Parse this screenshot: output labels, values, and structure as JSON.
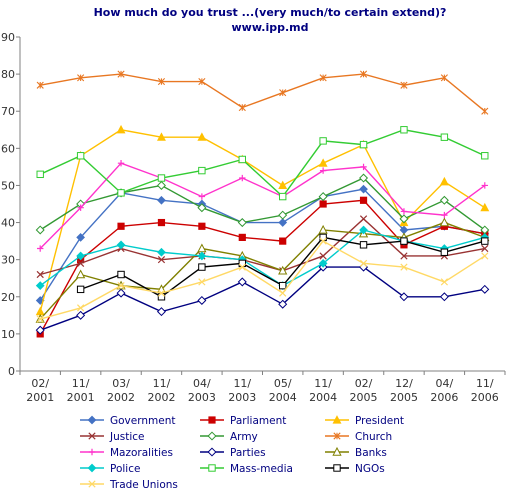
{
  "chart_data": {
    "type": "line",
    "title": "How much do you trust ...(very much/to certain extend)?",
    "subtitle": "www.ipp.md",
    "xlabel": "",
    "ylabel": "",
    "ylim": [
      0,
      90
    ],
    "yticks": [
      0,
      10,
      20,
      30,
      40,
      50,
      60,
      70,
      80,
      90
    ],
    "grid": false,
    "legend": "bottom",
    "categories": [
      [
        "02/",
        "2001"
      ],
      [
        "11/",
        "2001"
      ],
      [
        "03/",
        "2002"
      ],
      [
        "11/",
        "2002"
      ],
      [
        "04/",
        "2003"
      ],
      [
        "11/",
        "2003"
      ],
      [
        "05/",
        "2004"
      ],
      [
        "11/",
        "2004"
      ],
      [
        "02/",
        "2005"
      ],
      [
        "12/",
        "2005"
      ],
      [
        "04/",
        "2006"
      ],
      [
        "11/",
        "2006"
      ]
    ],
    "series": [
      {
        "name": "Government",
        "color": "#4472C4",
        "marker": "diamond",
        "values": [
          19,
          36,
          48,
          46,
          45,
          40,
          40,
          47,
          49,
          38,
          39,
          37
        ]
      },
      {
        "name": "Parliament",
        "color": "#CC0000",
        "marker": "square",
        "values": [
          10,
          30,
          39,
          40,
          39,
          36,
          35,
          45,
          46,
          34,
          39,
          37
        ]
      },
      {
        "name": "President",
        "color": "#FFC000",
        "marker": "triangle",
        "values": [
          16,
          58,
          65,
          63,
          63,
          57,
          50,
          56,
          61,
          40,
          51,
          44
        ]
      },
      {
        "name": "Justice",
        "color": "#993333",
        "marker": "x",
        "values": [
          26,
          29,
          33,
          30,
          31,
          30,
          27,
          31,
          41,
          31,
          31,
          33
        ]
      },
      {
        "name": "Army",
        "color": "#339933",
        "marker": "diamond-open",
        "values": [
          38,
          45,
          48,
          50,
          44,
          40,
          42,
          47,
          52,
          41,
          46,
          38
        ]
      },
      {
        "name": "Church",
        "color": "#E87722",
        "marker": "star",
        "values": [
          77,
          79,
          80,
          78,
          78,
          71,
          75,
          79,
          80,
          77,
          79,
          70
        ]
      },
      {
        "name": "Mazoralities",
        "color": "#FF33CC",
        "marker": "plus",
        "values": [
          33,
          44,
          56,
          52,
          47,
          52,
          47,
          54,
          55,
          43,
          42,
          50
        ]
      },
      {
        "name": "Parties",
        "color": "#000080",
        "marker": "diamond-open",
        "values": [
          11,
          15,
          21,
          16,
          19,
          24,
          18,
          28,
          28,
          20,
          20,
          22
        ]
      },
      {
        "name": "Banks",
        "color": "#808000",
        "marker": "triangle-open",
        "values": [
          14,
          26,
          23,
          22,
          33,
          31,
          27,
          38,
          37,
          36,
          40,
          36
        ]
      },
      {
        "name": "Police",
        "color": "#00CCCC",
        "marker": "diamond",
        "values": [
          23,
          31,
          34,
          32,
          31,
          30,
          23,
          29,
          38,
          35,
          33,
          36
        ]
      },
      {
        "name": "Mass-media",
        "color": "#33CC33",
        "marker": "square-open",
        "values": [
          53,
          58,
          48,
          52,
          54,
          57,
          47,
          62,
          61,
          65,
          63,
          58
        ]
      },
      {
        "name": "NGOs",
        "color": "#000000",
        "marker": "square-open",
        "values": [
          null,
          22,
          26,
          20,
          28,
          29,
          23,
          36,
          34,
          35,
          32,
          35
        ]
      },
      {
        "name": "Trade Unions",
        "color": "#FFD966",
        "marker": "x",
        "values": [
          14,
          17,
          23,
          21,
          24,
          28,
          21,
          35,
          29,
          28,
          24,
          31
        ]
      }
    ]
  }
}
